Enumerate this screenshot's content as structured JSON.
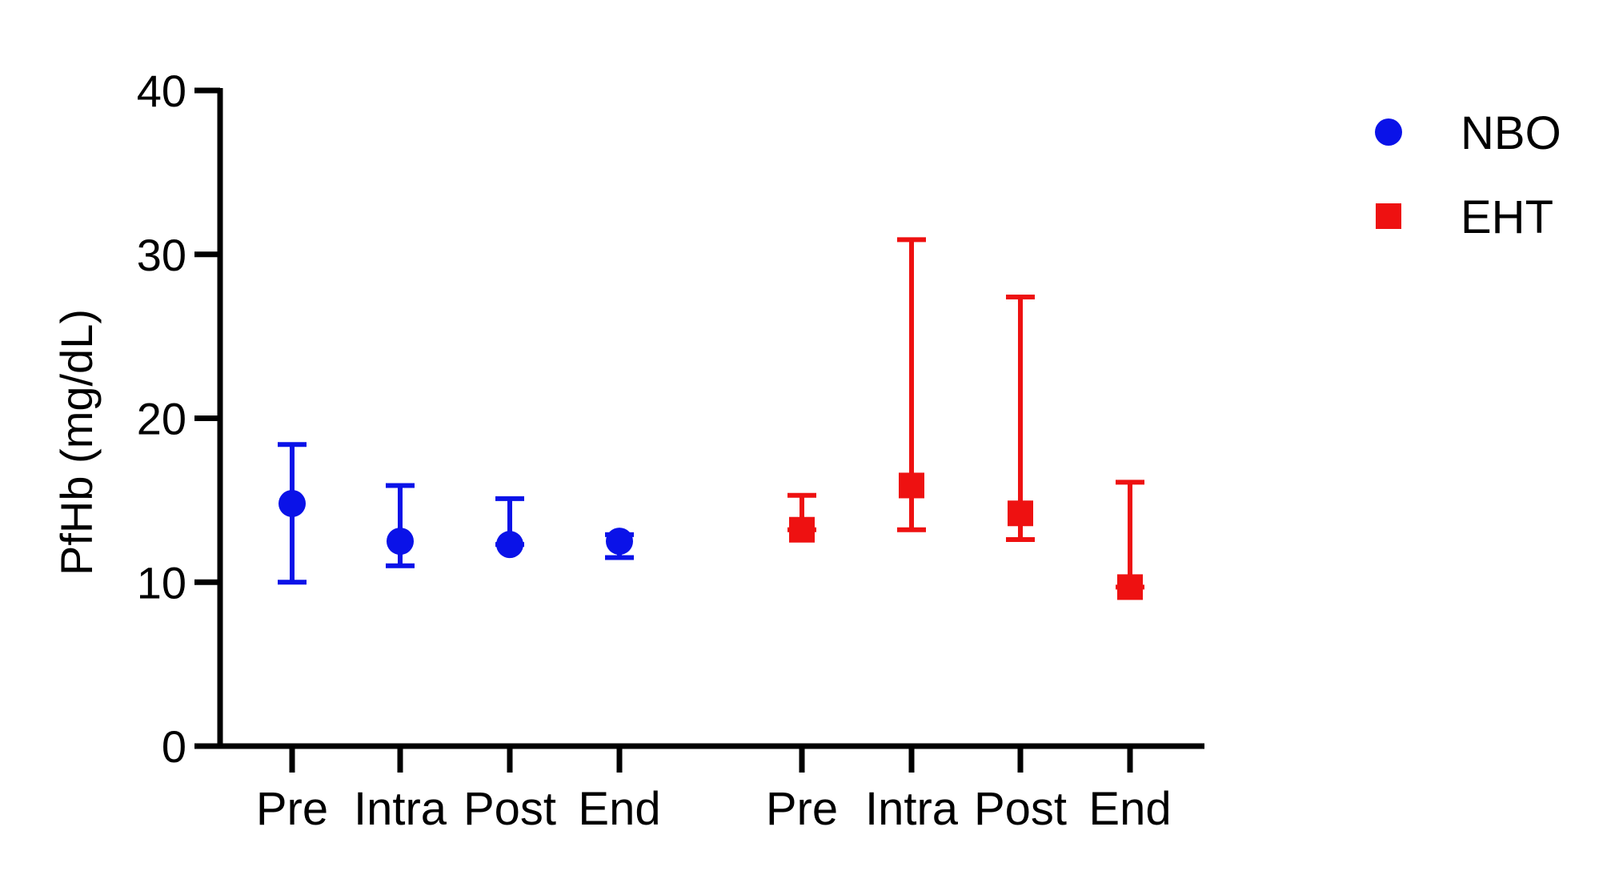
{
  "chart_data": {
    "type": "scatter",
    "ylabel": "PfHb (mg/dL)",
    "ylim": [
      0,
      40
    ],
    "yticks": [
      0,
      10,
      20,
      30,
      40
    ],
    "categories": [
      "Pre",
      "Intra",
      "Post",
      "End",
      "Pre",
      "Intra",
      "Post",
      "End"
    ],
    "series": [
      {
        "name": "NBO",
        "color": "#0a12e8",
        "marker": "circle",
        "points": [
          {
            "category_index": 0,
            "y": 14.8,
            "err_low": 10.0,
            "err_high": 18.4
          },
          {
            "category_index": 1,
            "y": 12.5,
            "err_low": 11.0,
            "err_high": 15.9
          },
          {
            "category_index": 2,
            "y": 12.3,
            "err_low": 12.3,
            "err_high": 15.1
          },
          {
            "category_index": 3,
            "y": 12.5,
            "err_low": 11.5,
            "err_high": 12.9
          }
        ]
      },
      {
        "name": "EHT",
        "color": "#ee1111",
        "marker": "square",
        "points": [
          {
            "category_index": 4,
            "y": 13.2,
            "err_low": 13.2,
            "err_high": 15.3
          },
          {
            "category_index": 5,
            "y": 15.9,
            "err_low": 13.2,
            "err_high": 30.9
          },
          {
            "category_index": 6,
            "y": 14.2,
            "err_low": 12.6,
            "err_high": 27.4
          },
          {
            "category_index": 7,
            "y": 9.7,
            "err_low": 9.7,
            "err_high": 16.1
          }
        ]
      }
    ],
    "legend_position": "top-right",
    "grid": false
  }
}
